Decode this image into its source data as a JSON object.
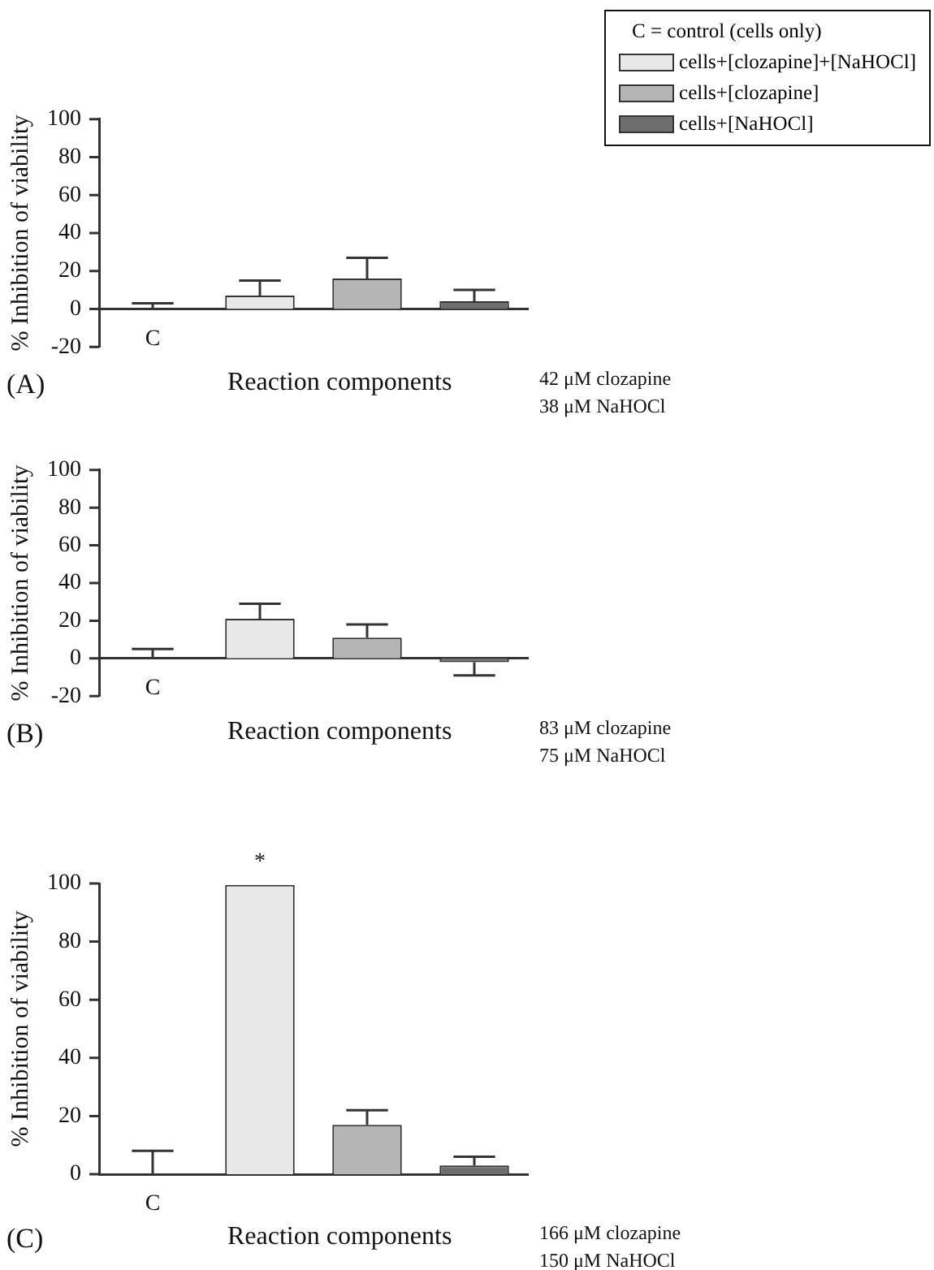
{
  "chart_data": [
    {
      "type": "bar",
      "categories": [
        "C",
        null,
        null,
        null
      ],
      "xlabel": "Reaction components",
      "ylabel": "% Inhibition of viability",
      "ylim": [
        -20,
        100
      ],
      "yticks": [
        -20,
        0,
        20,
        40,
        60,
        80,
        100
      ],
      "legend": "top right",
      "legend_title": "C = control (cells only)",
      "series": [
        {
          "color": "#ffffff",
          "values": [
            0,
            null,
            null,
            null
          ],
          "errors": [
            [
              0,
              3
            ],
            null,
            null,
            null
          ]
        },
        {
          "name": "cells+[clozapine]+[NaHOCl]",
          "color": "#e8e8e8",
          "values": [
            null,
            7,
            null,
            null
          ],
          "errors": [
            null,
            [
              7,
              15
            ],
            null,
            null
          ]
        },
        {
          "name": "cells+[clozapine]",
          "color": "#b5b5b5",
          "values": [
            null,
            null,
            16,
            null
          ],
          "errors": [
            null,
            null,
            [
              16,
              27
            ],
            null
          ]
        },
        {
          "name": "cells+[NaHOCl]",
          "color": "#6e6e6e",
          "values": [
            null,
            null,
            null,
            4
          ],
          "errors": [
            null,
            null,
            null,
            [
              4,
              10
            ]
          ]
        }
      ],
      "annotations": [
        "(A)",
        "42 μM clozapine",
        "38 μM NaHOCl"
      ]
    },
    {
      "type": "bar",
      "categories": [
        "C",
        null,
        null,
        null
      ],
      "xlabel": "Reaction components",
      "ylabel": "% Inhibition of viability",
      "ylim": [
        -20,
        100
      ],
      "yticks": [
        -20,
        0,
        20,
        40,
        60,
        80,
        100
      ],
      "series": [
        {
          "color": "#ffffff",
          "values": [
            0,
            null,
            null,
            null
          ],
          "errors": [
            [
              0,
              5
            ],
            null,
            null,
            null
          ]
        },
        {
          "color": "#e8e8e8",
          "values": [
            null,
            21,
            null,
            null
          ],
          "errors": [
            null,
            [
              21,
              29
            ],
            null,
            null
          ]
        },
        {
          "color": "#b5b5b5",
          "values": [
            null,
            null,
            11,
            null
          ],
          "errors": [
            null,
            null,
            [
              11,
              18
            ],
            null
          ]
        },
        {
          "color": "#6e6e6e",
          "values": [
            null,
            null,
            null,
            -2
          ],
          "errors": [
            null,
            null,
            null,
            [
              -9,
              -2
            ]
          ]
        }
      ],
      "annotations": [
        "(B)",
        "83 μM clozapine",
        "75 μM NaHOCl"
      ]
    },
    {
      "type": "bar",
      "categories": [
        "C",
        null,
        null,
        null
      ],
      "xlabel": "Reaction components",
      "ylabel": "% Inhibition of viability",
      "ylim": [
        0,
        100
      ],
      "yticks": [
        0,
        20,
        40,
        60,
        80,
        100
      ],
      "series": [
        {
          "color": "#ffffff",
          "values": [
            0,
            null,
            null,
            null
          ],
          "errors": [
            [
              0,
              8
            ],
            null,
            null,
            null
          ]
        },
        {
          "color": "#e8e8e8",
          "values": [
            null,
            99.5,
            null,
            null
          ]
        },
        {
          "color": "#b5b5b5",
          "values": [
            null,
            null,
            17,
            null
          ],
          "errors": [
            null,
            null,
            [
              17,
              22
            ],
            null
          ]
        },
        {
          "color": "#6e6e6e",
          "values": [
            null,
            null,
            null,
            3
          ],
          "errors": [
            null,
            null,
            null,
            [
              3,
              6
            ]
          ]
        }
      ],
      "annotations": [
        "(C)",
        "166 μM clozapine",
        "150 μM NaHOCl",
        {
          "text": "*",
          "y": 100
        }
      ]
    }
  ]
}
